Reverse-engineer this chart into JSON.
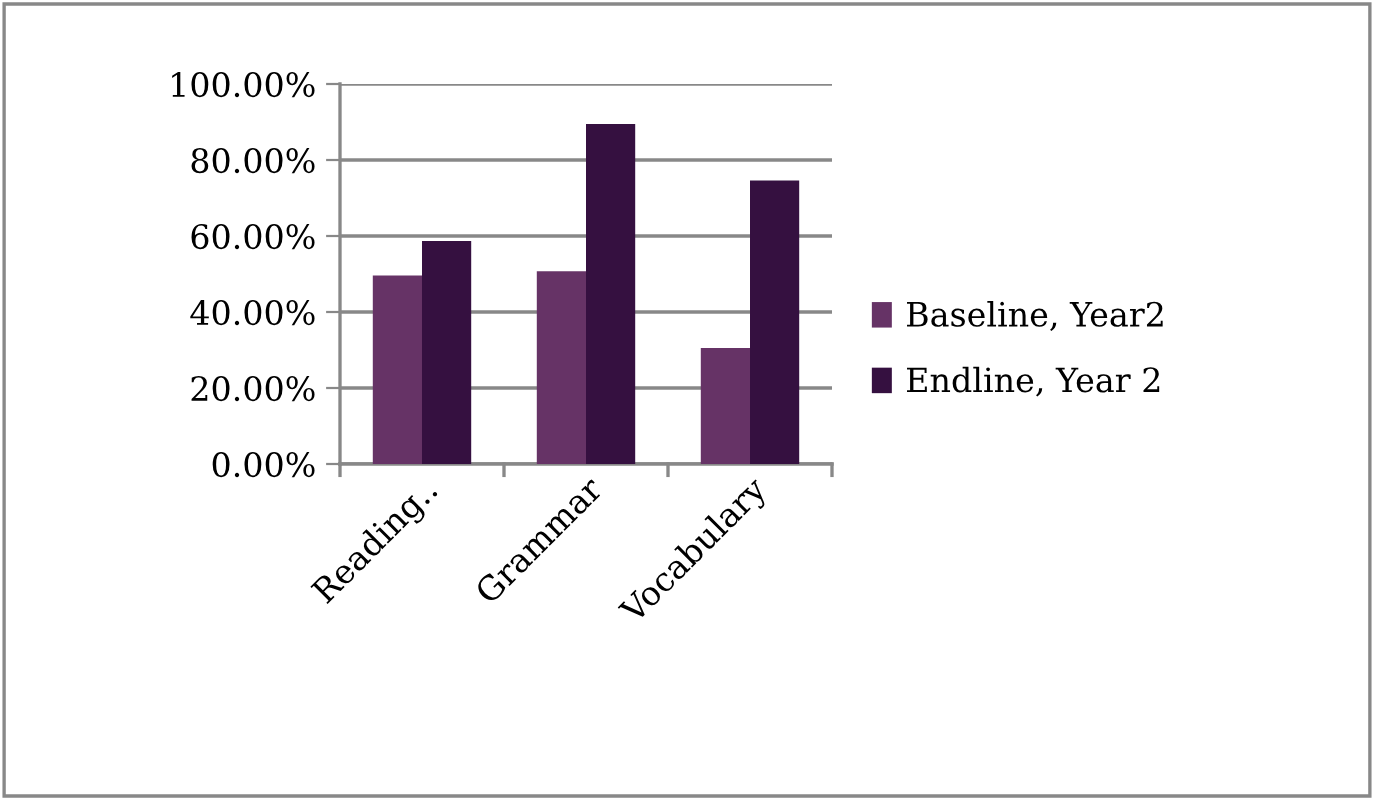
{
  "chart_data": {
    "type": "bar",
    "categories": [
      "Reading..",
      "Grammar",
      "Vocabulary"
    ],
    "series": [
      {
        "name": "Baseline, Year2",
        "color": "#663366",
        "values": [
          49.6,
          50.7,
          30.5
        ]
      },
      {
        "name": "Endline, Year 2",
        "color": "#351040",
        "values": [
          58.7,
          89.5,
          74.6
        ]
      }
    ],
    "ylim": [
      0,
      100
    ],
    "yticks": [
      {
        "value": 0,
        "label": "0.00%"
      },
      {
        "value": 20,
        "label": "20.00%"
      },
      {
        "value": 40,
        "label": "40.00%"
      },
      {
        "value": 60,
        "label": "60.00%"
      },
      {
        "value": 80,
        "label": "80.00%"
      },
      {
        "value": 100,
        "label": "100.00%"
      }
    ],
    "grid": "y",
    "legend": "right"
  }
}
